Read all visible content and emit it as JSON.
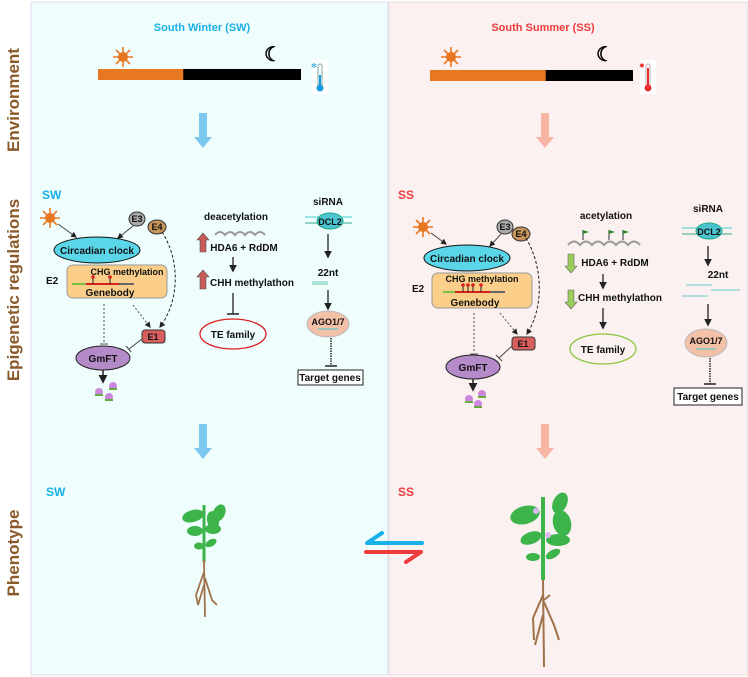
{
  "row_labels": {
    "environment": "Environment",
    "epigenetic": "Epigenetic regulations",
    "phenotype": "Phenotype"
  },
  "colors": {
    "sw": "#1ab0e8",
    "ss": "#ee3b3b",
    "sw_panel": "#effdfd",
    "ss_panel": "#fbf1f1",
    "row_label": "#8b5a2b",
    "day": "#e87722",
    "night": "#000000"
  },
  "sw": {
    "title": "South Winter (SW)",
    "short": "SW",
    "phenotype_label": "SW",
    "day_fraction": 0.42,
    "temperature_icon": "thermometer-cold-icon",
    "network": {
      "circadian": "Circadian clock",
      "e2": "E2",
      "e3": "E3",
      "e4": "E4",
      "e1": "E1",
      "chg": "CHG methylation",
      "genebody": "Genebody",
      "gmft": "GmFT"
    },
    "histone": {
      "title": "deacetylation",
      "hda6": "HDA6 + RdDM",
      "chh": "CHH methylathon",
      "te": "TE family",
      "direction": "up"
    },
    "sirna": {
      "title": "siRNA",
      "dcl2": "DCL2",
      "nt": "22nt",
      "ago": "AGO1/7",
      "target": "Target genes"
    }
  },
  "ss": {
    "title": "South Summer (SS)",
    "short": "SS",
    "phenotype_label": "SS",
    "day_fraction": 0.57,
    "temperature_icon": "thermometer-hot-icon",
    "network": {
      "circadian": "Circadian clock",
      "e2": "E2",
      "e3": "E3",
      "e4": "E4",
      "e1": "E1",
      "chg": "CHG methylation",
      "genebody": "Genebody",
      "gmft": "GmFT"
    },
    "histone": {
      "title": "acetylation",
      "hda6": "HDA6 + RdDM",
      "chh": "CHH methylathon",
      "te": "TE family",
      "direction": "down"
    },
    "sirna": {
      "title": "siRNA",
      "dcl2": "DCL2",
      "nt": "22nt",
      "ago": "AGO1/7",
      "target": "Target genes"
    }
  }
}
